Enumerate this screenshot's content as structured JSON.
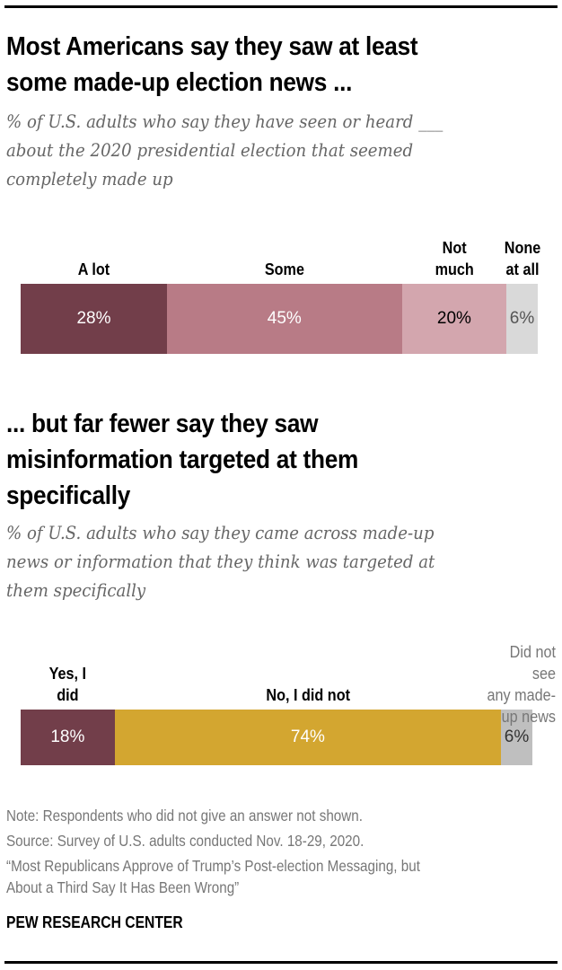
{
  "chart_data": [
    {
      "type": "bar",
      "orientation": "horizontal-stacked",
      "title": "Most Americans say they saw at least some made-up election news ...",
      "subtitle": "% of U.S. adults who say they have seen or heard ___ about the 2020 presidential election that seemed completely made up",
      "categories": [
        "A lot",
        "Some",
        "Not much",
        "None at all"
      ],
      "values": [
        28,
        45,
        20,
        6
      ],
      "value_labels": [
        "28%",
        "45%",
        "20%",
        "6%"
      ],
      "colors": [
        "#723e4a",
        "#b87b86",
        "#d3a6ae",
        "#d9d9d9"
      ],
      "label_colors": [
        "#ffffff",
        "#ffffff",
        "#000000",
        "#555555"
      ],
      "xlim": [
        0,
        100
      ]
    },
    {
      "type": "bar",
      "orientation": "horizontal-stacked",
      "title": "... but far fewer say they saw misinformation targeted at them specifically",
      "subtitle": "% of U.S. adults who say they came across made-up news or information that they think was targeted at them specifically",
      "categories": [
        "Yes, I did",
        "No, I did not",
        "Did not see any made-up news"
      ],
      "values": [
        18,
        74,
        6
      ],
      "value_labels": [
        "18%",
        "74%",
        "6%"
      ],
      "colors": [
        "#723e4a",
        "#d3a630",
        "#bfbfbf"
      ],
      "label_colors": [
        "#ffffff",
        "#ffffff",
        "#333333"
      ],
      "xlim": [
        0,
        100
      ]
    }
  ],
  "chart1": {
    "title_lines": [
      "Most Americans say they saw at least",
      "some made-up election news ..."
    ],
    "subtitle_lines": [
      "% of U.S. adults who say they have seen or heard ___",
      "about the 2020 presidential election that seemed",
      "completely made up"
    ],
    "label_lines": [
      [
        "A lot"
      ],
      [
        "Some"
      ],
      [
        "Not",
        "much"
      ],
      [
        "None",
        "at all"
      ]
    ]
  },
  "chart2": {
    "title_lines": [
      "... but far fewer say they saw",
      "misinformation targeted at them",
      "specifically"
    ],
    "subtitle_lines": [
      "% of U.S. adults who say they came across made-up",
      "news or information that they think was targeted at",
      "them specifically"
    ],
    "label_lines": [
      [
        "Yes, I",
        "did"
      ],
      [
        "No, I did not"
      ],
      [
        "Did not see",
        "any made-",
        "up  news"
      ]
    ]
  },
  "footer": {
    "note": "Note: Respondents who did not give an answer not shown.",
    "source": "Source: Survey of U.S. adults conducted Nov. 18-29, 2020.",
    "report_line1": "“Most Republicans Approve of Trump’s Post-election Messaging, but",
    "report_line2": "About a Third Say It Has Been Wrong”",
    "brand": "PEW RESEARCH CENTER"
  }
}
